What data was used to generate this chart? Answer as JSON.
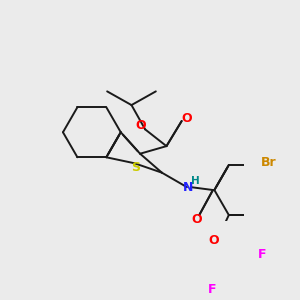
{
  "bg_color": "#ebebeb",
  "bond_color": "#1a1a1a",
  "colors": {
    "O": "#ff0000",
    "S": "#cccc00",
    "N": "#2222ff",
    "Br": "#cc8800",
    "F": "#ff00ff",
    "H": "#008888",
    "C": "#1a1a1a"
  },
  "line_width": 1.4,
  "dbo": 0.06
}
